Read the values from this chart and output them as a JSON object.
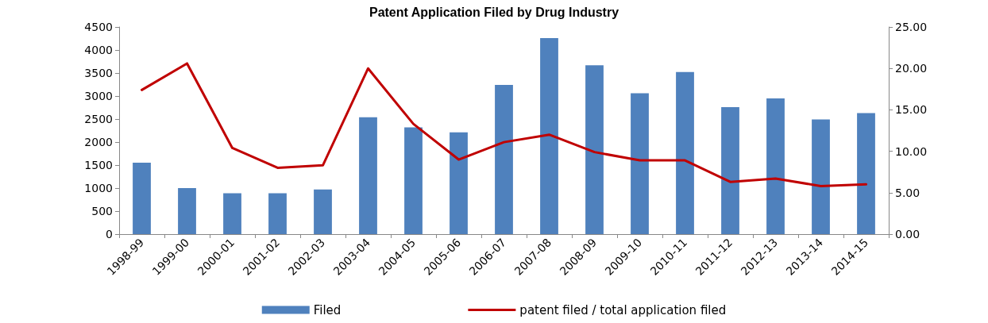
{
  "chart_data": {
    "type": "bar",
    "title": "Patent Application Filed by Drug Industry",
    "categories": [
      "1998-99",
      "1999-00",
      "2000-01",
      "2001-02",
      "2002-03",
      "2003-04",
      "2004-05",
      "2005-06",
      "2006-07",
      "2007-08",
      "2008-09",
      "2009-10",
      "2010-11",
      "2011-12",
      "2012-13",
      "2013-14",
      "2014-15"
    ],
    "series": [
      {
        "name": "Filed",
        "color": "#4f81bd",
        "values": [
          1550,
          1000,
          890,
          890,
          970,
          2540,
          2320,
          2210,
          3240,
          4260,
          3670,
          3060,
          3520,
          2760,
          2950,
          2490,
          2630
        ]
      },
      {
        "name": "patent filed / total application filed",
        "type": "line",
        "axis": "y2",
        "color": "#c00000",
        "values": [
          17.4,
          20.6,
          10.4,
          8.0,
          8.3,
          20.0,
          13.3,
          9.0,
          11.1,
          12.0,
          9.9,
          8.9,
          8.9,
          6.3,
          6.7,
          5.8,
          6.0
        ]
      }
    ],
    "ylim": [
      0,
      4500
    ],
    "yticks": [
      0,
      500,
      1000,
      1500,
      2000,
      2500,
      3000,
      3500,
      4000,
      4500
    ],
    "y2lim": [
      0,
      25
    ],
    "y2ticks": [
      {
        "value": 0,
        "label": "0.00"
      },
      {
        "value": 5,
        "label": "5.00"
      },
      {
        "value": 10,
        "label": "10.00"
      },
      {
        "value": 15,
        "label": "15.00"
      },
      {
        "value": 20,
        "label": "20.00"
      },
      {
        "value": 25,
        "label": "25.00"
      }
    ],
    "legend": "bottom",
    "grid": false,
    "marker": "none",
    "line_style": "solid"
  }
}
